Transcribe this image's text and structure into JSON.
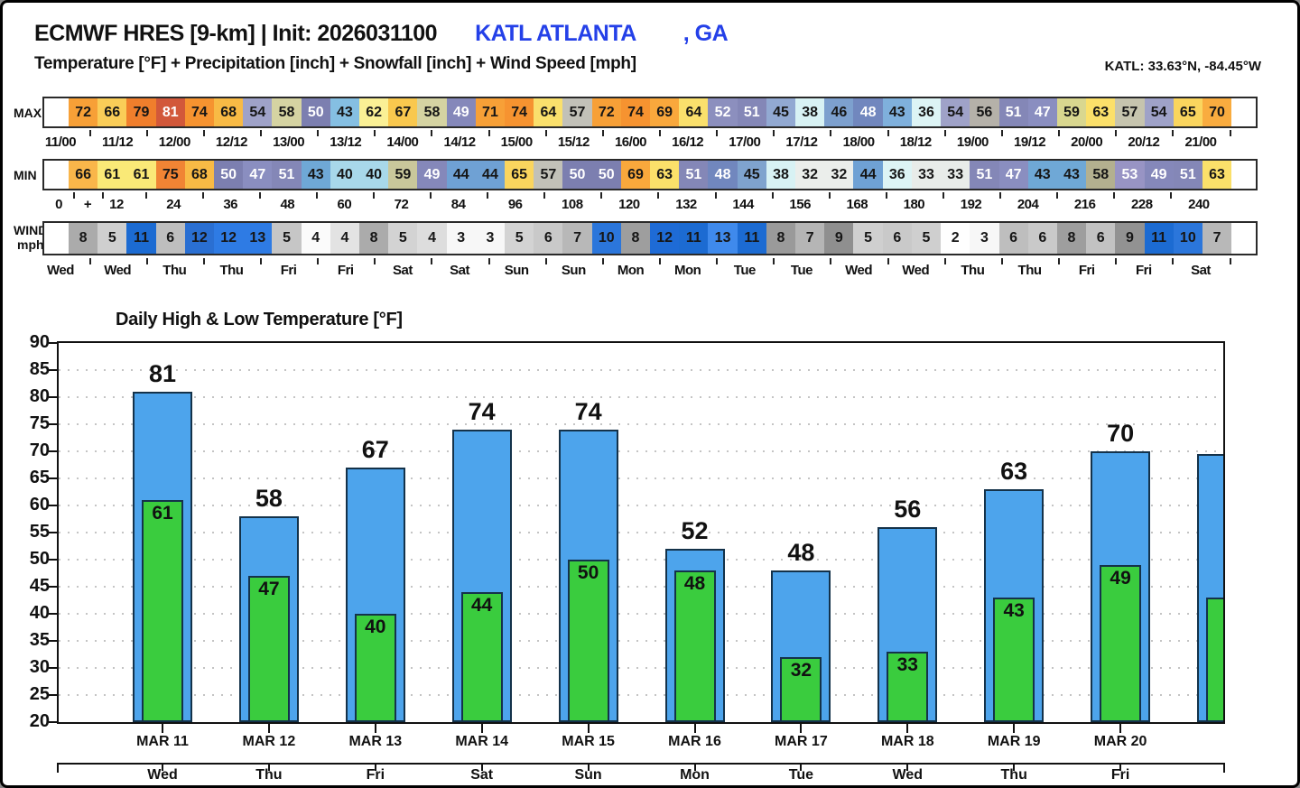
{
  "header": {
    "model_title": "ECMWF HRES [9-km] | Init: 2026031100",
    "station": "KATL ATLANTA",
    "state_suffix": ", GA",
    "subtitle": "Temperature [°F] + Precipitation [inch] + Snowfall [inch] + Wind Speed [mph]",
    "coords": "KATL: 33.63°N, -84.45°W",
    "accent_color": "#2440E8"
  },
  "chart_data": [
    {
      "type": "heatmap",
      "name": "max-temp-strip",
      "row_label": "MAX",
      "row_label2": "",
      "axis_style": "paired",
      "values": [
        72,
        66,
        79,
        81,
        74,
        68,
        54,
        58,
        50,
        43,
        62,
        67,
        58,
        49,
        71,
        74,
        64,
        57,
        72,
        74,
        69,
        64,
        52,
        51,
        45,
        38,
        46,
        48,
        43,
        36,
        54,
        56,
        51,
        47,
        59,
        63,
        57,
        54,
        65,
        70
      ],
      "cell_colors": [
        "#F7A037",
        "#FACD58",
        "#F07E2C",
        "#D2583A",
        "#F69330",
        "#F8BA45",
        "#9FA2C8",
        "#D5D3A2",
        "#7C7FB0",
        "#85BFE2",
        "#FAF095",
        "#F9C84E",
        "#D5D3A2",
        "#8588BA",
        "#F7A037",
        "#F69330",
        "#FAE06C",
        "#C2C1B8",
        "#F7A037",
        "#F69330",
        "#F9A83C",
        "#FAE06C",
        "#8C8FBE",
        "#8487B7",
        "#92A9D2",
        "#D8F2F4",
        "#7DA0CE",
        "#7187BE",
        "#7FB0DC",
        "#DDF4F5",
        "#9FA2C8",
        "#B5B1A9",
        "#8487B7",
        "#8A8EC0",
        "#D9D78F",
        "#FBE06A",
        "#C6C4AE",
        "#9FA2C8",
        "#FAD55E",
        "#F9AC3F"
      ],
      "white_text_values": [
        81,
        47,
        48,
        49,
        50,
        51,
        52,
        53
      ],
      "x_labels": [
        "11/00",
        "11/12",
        "12/00",
        "12/12",
        "13/00",
        "13/12",
        "14/00",
        "14/12",
        "15/00",
        "15/12",
        "16/00",
        "16/12",
        "17/00",
        "17/12",
        "18/00",
        "18/12",
        "19/00",
        "19/12",
        "20/00",
        "20/12",
        "21/00"
      ]
    },
    {
      "type": "heatmap",
      "name": "min-temp-strip",
      "row_label": "MIN",
      "row_label2": "",
      "axis_style": "hours",
      "values": [
        66,
        61,
        61,
        75,
        68,
        50,
        47,
        51,
        43,
        40,
        40,
        59,
        49,
        44,
        44,
        65,
        57,
        50,
        50,
        69,
        63,
        51,
        48,
        45,
        38,
        32,
        32,
        44,
        36,
        33,
        33,
        51,
        47,
        43,
        43,
        58,
        53,
        49,
        51,
        63
      ],
      "cell_colors": [
        "#F9B64A",
        "#FAE977",
        "#FAE977",
        "#F08434",
        "#F8BA45",
        "#7C7FB0",
        "#8A8EC0",
        "#8487B7",
        "#6FA8D6",
        "#A8D8EA",
        "#A8D8EA",
        "#C9C79B",
        "#8588BA",
        "#6FA1D4",
        "#6FA1D4",
        "#FAD55E",
        "#C2C1B8",
        "#7C7FB0",
        "#7C7FB0",
        "#F9A83C",
        "#FBE06A",
        "#8487B7",
        "#7187BE",
        "#7FA3CE",
        "#D8F2F4",
        "#EBEEEB",
        "#EBEEEB",
        "#6FA1D4",
        "#DDF4F5",
        "#E8ECE9",
        "#E8ECE9",
        "#8487B7",
        "#8A8EC0",
        "#6FA8D6",
        "#6FA8D6",
        "#B3B08F",
        "#9894C4",
        "#8588BA",
        "#8487B7",
        "#FBE06A"
      ],
      "white_text_values": [
        81,
        47,
        48,
        49,
        50,
        51,
        52,
        53
      ],
      "x_labels": [
        "0",
        "+",
        "12",
        "24",
        "36",
        "48",
        "60",
        "72",
        "84",
        "96",
        "108",
        "120",
        "132",
        "144",
        "156",
        "168",
        "180",
        "192",
        "204",
        "216",
        "228",
        "240"
      ]
    },
    {
      "type": "heatmap",
      "name": "wind-speed-strip",
      "row_label": "WIND",
      "row_label2": "mph",
      "axis_style": "paired",
      "values": [
        8,
        5,
        11,
        6,
        12,
        12,
        13,
        5,
        4,
        4,
        8,
        5,
        4,
        3,
        3,
        5,
        6,
        7,
        10,
        8,
        12,
        11,
        13,
        11,
        8,
        7,
        9,
        5,
        6,
        5,
        2,
        3,
        6,
        6,
        8,
        6,
        9,
        11,
        10,
        7
      ],
      "cell_colors": [
        "#ABABAB",
        "#CFCFCF",
        "#1C6BD2",
        "#BEBEBE",
        "#2A6FD2",
        "#2E7BE4",
        "#2E7BE4",
        "#C6C6C6",
        "#FBFBFB",
        "#E3E3E3",
        "#ABABAB",
        "#D3D3D3",
        "#DDDDDD",
        "#F7F7F7",
        "#F7F7F7",
        "#D3D3D3",
        "#C9C9C9",
        "#B8B8B8",
        "#2B76DB",
        "#9E9E9E",
        "#1E6BD6",
        "#1C6BD2",
        "#3F8AEC",
        "#1C6BD2",
        "#9A9A9A",
        "#B5B5B5",
        "#8F8F8F",
        "#CFCFCF",
        "#C9C9C9",
        "#CFCFCF",
        "#FEFEFE",
        "#F7F7F7",
        "#BEBEBE",
        "#C9C9C9",
        "#9E9E9E",
        "#C2C2C2",
        "#929292",
        "#1C6BD2",
        "#2B76DB",
        "#B8B8B8"
      ],
      "white_text_values": [],
      "x_labels": [
        "Wed",
        "Wed",
        "Thu",
        "Thu",
        "Fri",
        "Fri",
        "Sat",
        "Sat",
        "Sun",
        "Sun",
        "Mon",
        "Mon",
        "Tue",
        "Tue",
        "Wed",
        "Wed",
        "Thu",
        "Thu",
        "Fri",
        "Fri",
        "Sat"
      ]
    },
    {
      "type": "bar",
      "title": "Daily High & Low Temperature [°F]",
      "categories": [
        "MAR 11",
        "MAR 12",
        "MAR 13",
        "MAR 14",
        "MAR 15",
        "MAR 16",
        "MAR 17",
        "MAR 18",
        "MAR 19",
        "MAR 20"
      ],
      "weekdays": [
        "Wed",
        "Thu",
        "Fri",
        "Sat",
        "Sun",
        "Mon",
        "Tue",
        "Wed",
        "Thu",
        "Fri"
      ],
      "series": [
        {
          "name": "High",
          "values": [
            81,
            58,
            67,
            74,
            74,
            52,
            48,
            56,
            63,
            70
          ]
        },
        {
          "name": "Low",
          "values": [
            61,
            47,
            40,
            44,
            50,
            48,
            32,
            33,
            43,
            49
          ]
        }
      ],
      "next_day_clipped": {
        "high": 69.5,
        "low": 43
      },
      "high_color": "#4DA4EC",
      "low_color": "#3ACC3E",
      "bar_outline": "#14324A",
      "ylim": [
        20,
        90
      ],
      "ytick_step": 5,
      "grid": "dotted"
    }
  ]
}
